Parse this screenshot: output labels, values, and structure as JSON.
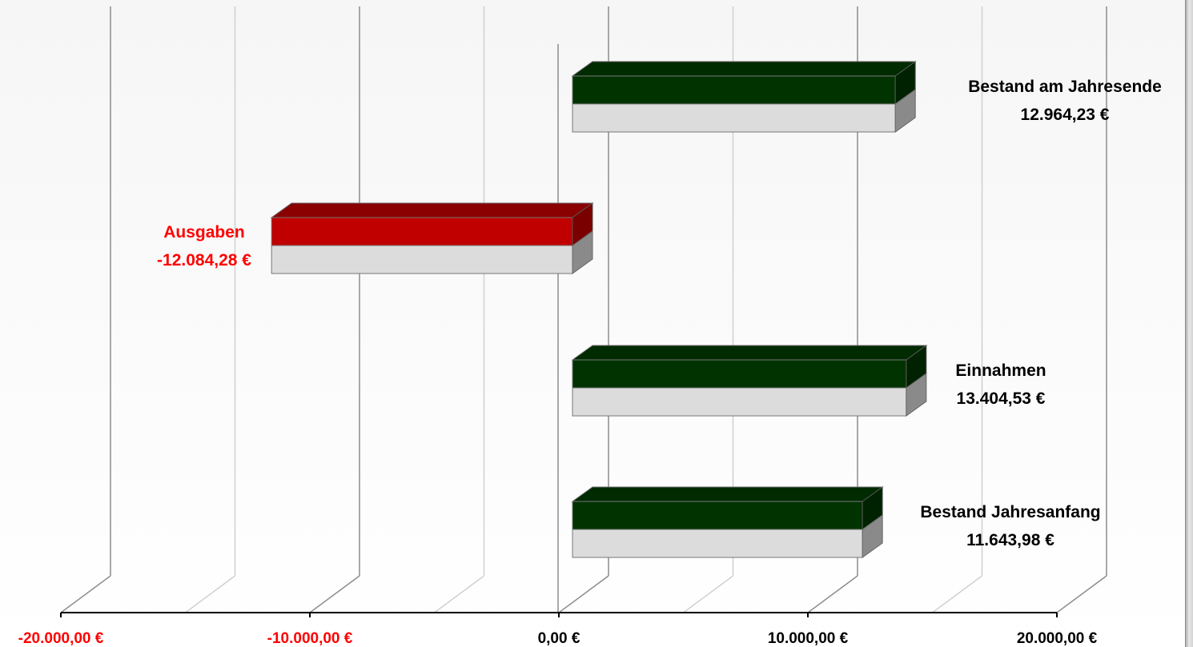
{
  "chart_data": {
    "type": "bar",
    "orientation": "horizontal",
    "style": "3d-bar",
    "xlim": [
      -20000,
      20000
    ],
    "x_ticks": [
      -20000,
      -10000,
      0,
      10000,
      20000
    ],
    "x_tick_labels": [
      "-20.000,00 €",
      "-10.000,00 €",
      "0,00 €",
      "10.000,00 €",
      "20.000,00 €"
    ],
    "grid": true,
    "colors": {
      "positive": "#003300",
      "negative": "#c00000",
      "negative_label": "#ff0000",
      "positive_label": "#000000",
      "front_lower": "#dcdcdc",
      "side_lower": "#8a8a8a",
      "axis": "#000000",
      "grid_major": "#8c8c8c",
      "grid_minor": "#d0d0d0"
    },
    "categories": [
      "Bestand am Jahresende",
      "Ausgaben",
      "Einnahmen",
      "Bestand Jahresanfang"
    ],
    "values": [
      12964.23,
      -12084.28,
      13404.53,
      11643.98
    ],
    "value_labels": [
      "12.964,23 €",
      "-12.084,28 €",
      "13.404,53 €",
      "11.643,98 €"
    ]
  }
}
